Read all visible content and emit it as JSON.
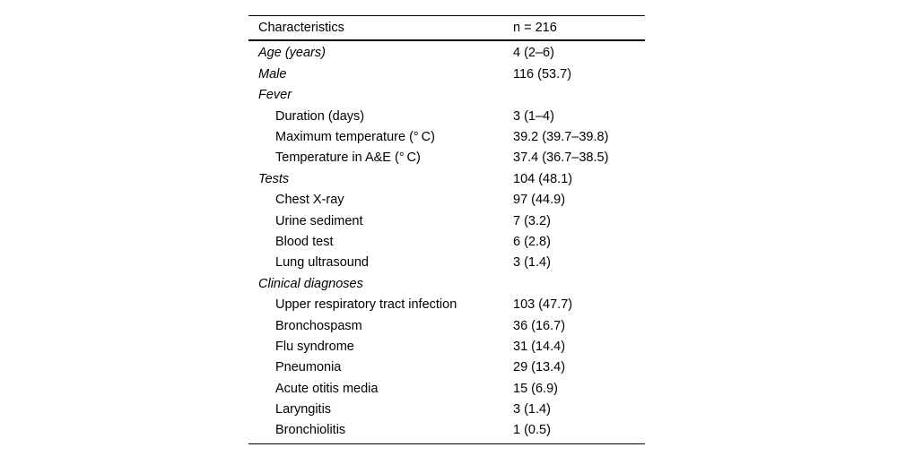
{
  "table": {
    "header": {
      "col1": "Characteristics",
      "col2": "n = 216"
    },
    "rows": [
      {
        "label": "Age (years)",
        "value": "4 (2–6)",
        "style": "section"
      },
      {
        "label": "Male",
        "value": "116 (53.7)",
        "style": "section"
      },
      {
        "label": "Fever",
        "value": "",
        "style": "section"
      },
      {
        "label": "Duration (days)",
        "value": "3 (1–4)",
        "style": "sub"
      },
      {
        "label": "Maximum temperature (° C)",
        "value": "39.2 (39.7–39.8)",
        "style": "sub"
      },
      {
        "label": "Temperature in A&E (° C)",
        "value": "37.4 (36.7–38.5)",
        "style": "sub"
      },
      {
        "label": "Tests",
        "value": "104 (48.1)",
        "style": "section"
      },
      {
        "label": "Chest X-ray",
        "value": "97 (44.9)",
        "style": "sub"
      },
      {
        "label": "Urine sediment",
        "value": "7 (3.2)",
        "style": "sub"
      },
      {
        "label": "Blood test",
        "value": "6 (2.8)",
        "style": "sub"
      },
      {
        "label": "Lung ultrasound",
        "value": "3 (1.4)",
        "style": "sub"
      },
      {
        "label": "Clinical diagnoses",
        "value": "",
        "style": "section"
      },
      {
        "label": "Upper respiratory tract infection",
        "value": "103 (47.7)",
        "style": "sub"
      },
      {
        "label": "Bronchospasm",
        "value": "36 (16.7)",
        "style": "sub"
      },
      {
        "label": "Flu syndrome",
        "value": "31 (14.4)",
        "style": "sub"
      },
      {
        "label": "Pneumonia",
        "value": "29 (13.4)",
        "style": "sub"
      },
      {
        "label": "Acute otitis media",
        "value": "15 (6.9)",
        "style": "sub"
      },
      {
        "label": "Laryngitis",
        "value": "3 (1.4)",
        "style": "sub"
      },
      {
        "label": "Bronchiolitis",
        "value": "1 (0.5)",
        "style": "sub"
      }
    ]
  }
}
